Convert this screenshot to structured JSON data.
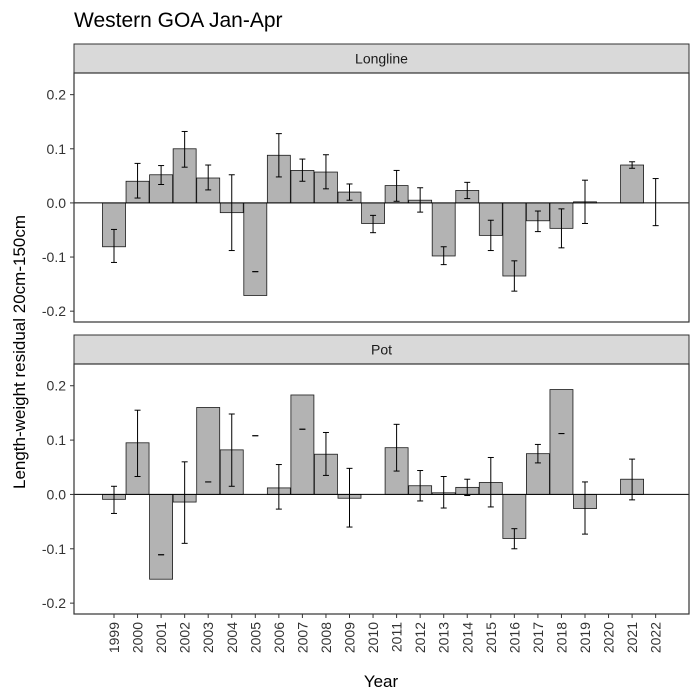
{
  "chart_data": {
    "type": "bar",
    "title": "Western GOA Jan-Apr",
    "xlabel": "Year",
    "ylabel": "Length-weight residual 20cm-150cm",
    "categories": [
      "1999",
      "2000",
      "2001",
      "2002",
      "2003",
      "2004",
      "2005",
      "2006",
      "2007",
      "2008",
      "2009",
      "2010",
      "2011",
      "2012",
      "2013",
      "2014",
      "2015",
      "2016",
      "2017",
      "2018",
      "2019",
      "2020",
      "2021",
      "2022"
    ],
    "ylim": [
      -0.22,
      0.24
    ],
    "yticks": [
      -0.2,
      -0.1,
      0.0,
      0.1,
      0.2
    ],
    "ytick_labels": [
      "-0.2",
      "-0.1",
      "0.0",
      "0.1",
      "0.2"
    ],
    "grid": false,
    "legend": "none",
    "colors": {
      "bar_fill": "#b3b3b3",
      "bar_stroke": "#1a1a1a",
      "strip_fill": "#d9d9d9"
    },
    "panels": [
      {
        "name": "Longline",
        "values": [
          -0.081,
          0.04,
          0.052,
          0.1,
          0.046,
          -0.018,
          -0.171,
          0.088,
          0.06,
          0.057,
          0.02,
          -0.038,
          0.032,
          0.005,
          -0.098,
          0.023,
          -0.06,
          -0.135,
          -0.033,
          -0.047,
          0.002,
          null,
          0.07,
          null
        ],
        "points": [
          -0.081,
          0.04,
          0.052,
          0.1,
          0.046,
          -0.018,
          -0.127,
          0.088,
          0.06,
          0.057,
          0.02,
          -0.038,
          0.032,
          0.005,
          -0.098,
          0.023,
          -0.06,
          -0.135,
          -0.033,
          -0.047,
          0.002,
          null,
          0.07,
          0.002
        ],
        "err_low": [
          -0.11,
          0.009,
          0.034,
          0.066,
          0.024,
          -0.088,
          -0.127,
          0.048,
          0.04,
          0.026,
          0.005,
          -0.055,
          0.003,
          -0.017,
          -0.114,
          0.008,
          -0.088,
          -0.163,
          -0.053,
          -0.083,
          -0.038,
          null,
          0.064,
          -0.042
        ],
        "err_high": [
          -0.049,
          0.073,
          0.069,
          0.132,
          0.07,
          0.052,
          -0.127,
          0.128,
          0.081,
          0.089,
          0.035,
          -0.023,
          0.06,
          0.028,
          -0.081,
          0.038,
          -0.032,
          -0.107,
          -0.015,
          -0.011,
          0.042,
          null,
          0.076,
          0.045
        ]
      },
      {
        "name": "Pot",
        "values": [
          -0.009,
          0.095,
          -0.156,
          -0.014,
          0.16,
          0.082,
          null,
          0.012,
          0.183,
          0.074,
          -0.007,
          null,
          0.086,
          0.016,
          0.003,
          0.013,
          0.022,
          -0.081,
          0.075,
          0.193,
          -0.026,
          null,
          0.028,
          null
        ],
        "points": [
          -0.009,
          0.095,
          -0.111,
          -0.014,
          0.023,
          0.082,
          0.108,
          0.012,
          0.12,
          0.074,
          -0.007,
          null,
          0.086,
          0.016,
          0.003,
          0.013,
          0.022,
          -0.081,
          0.075,
          0.112,
          -0.026,
          null,
          0.028,
          null
        ],
        "err_low": [
          -0.035,
          0.033,
          -0.111,
          -0.09,
          0.023,
          0.015,
          0.108,
          -0.027,
          0.12,
          0.035,
          -0.06,
          null,
          0.043,
          -0.012,
          -0.025,
          -0.002,
          -0.023,
          -0.1,
          0.058,
          0.112,
          -0.073,
          null,
          -0.01,
          null
        ],
        "err_high": [
          0.015,
          0.155,
          -0.111,
          0.06,
          0.023,
          0.148,
          0.108,
          0.055,
          0.12,
          0.114,
          0.048,
          null,
          0.129,
          0.044,
          0.033,
          0.028,
          0.068,
          -0.063,
          0.092,
          0.112,
          0.023,
          null,
          0.065,
          null
        ]
      }
    ]
  }
}
